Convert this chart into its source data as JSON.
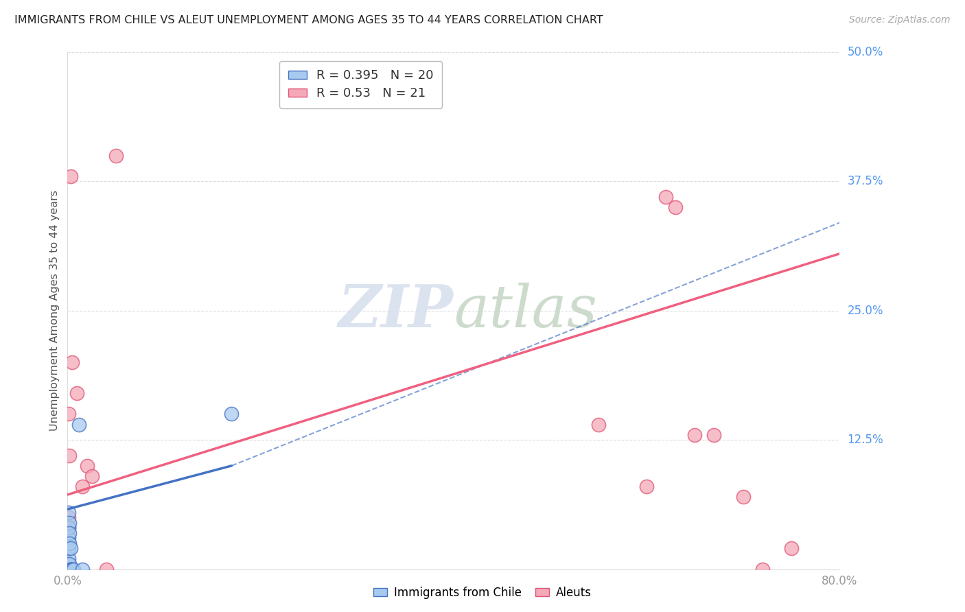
{
  "title": "IMMIGRANTS FROM CHILE VS ALEUT UNEMPLOYMENT AMONG AGES 35 TO 44 YEARS CORRELATION CHART",
  "source": "Source: ZipAtlas.com",
  "ylabel": "Unemployment Among Ages 35 to 44 years",
  "xlim": [
    0.0,
    0.8
  ],
  "ylim": [
    0.0,
    0.5
  ],
  "chile_R": 0.395,
  "chile_N": 20,
  "aleut_R": 0.53,
  "aleut_N": 21,
  "chile_color": "#A8CAEE",
  "aleut_color": "#F4A8B8",
  "chile_edge_color": "#4472C4",
  "aleut_edge_color": "#E05575",
  "chile_line_color": "#4472C4",
  "aleut_line_color": "#F06080",
  "background_color": "#FFFFFF",
  "grid_color": "#DDDDDD",
  "ytick_vals": [
    0.0,
    0.125,
    0.25,
    0.375,
    0.5
  ],
  "ytick_labels": [
    "",
    "12.5%",
    "25.0%",
    "37.5%",
    "50.0%"
  ],
  "xtick_vals": [
    0.0,
    0.1,
    0.2,
    0.3,
    0.4,
    0.5,
    0.6,
    0.7,
    0.8
  ],
  "xtick_labels": [
    "0.0%",
    "",
    "",
    "",
    "",
    "",
    "",
    "",
    "80.0%"
  ],
  "chile_x": [
    0.0005,
    0.0008,
    0.001,
    0.001,
    0.001,
    0.0012,
    0.0015,
    0.002,
    0.002,
    0.002,
    0.0025,
    0.003,
    0.003,
    0.004,
    0.005,
    0.005,
    0.006,
    0.012,
    0.015,
    0.17
  ],
  "chile_y": [
    0.005,
    0.01,
    0.02,
    0.03,
    0.04,
    0.055,
    0.045,
    0.035,
    0.025,
    0.005,
    0.0,
    0.0,
    0.02,
    0.0,
    0.0,
    0.0,
    0.0,
    0.14,
    0.0,
    0.15
  ],
  "aleut_x": [
    0.001,
    0.001,
    0.001,
    0.002,
    0.003,
    0.005,
    0.01,
    0.015,
    0.02,
    0.025,
    0.04,
    0.05,
    0.55,
    0.6,
    0.62,
    0.63,
    0.65,
    0.67,
    0.7,
    0.72,
    0.75
  ],
  "aleut_y": [
    0.15,
    0.05,
    0.04,
    0.11,
    0.38,
    0.2,
    0.17,
    0.08,
    0.1,
    0.09,
    0.0,
    0.4,
    0.14,
    0.08,
    0.36,
    0.35,
    0.13,
    0.13,
    0.07,
    0.0,
    0.02
  ],
  "chile_line_x0": 0.0,
  "chile_line_y0": 0.058,
  "chile_line_x1_solid": 0.17,
  "chile_line_y1_solid": 0.1,
  "chile_line_x1_dash": 0.8,
  "chile_line_y1_dash": 0.335,
  "aleut_line_x0": 0.0,
  "aleut_line_y0": 0.072,
  "aleut_line_x1": 0.8,
  "aleut_line_y1": 0.305
}
